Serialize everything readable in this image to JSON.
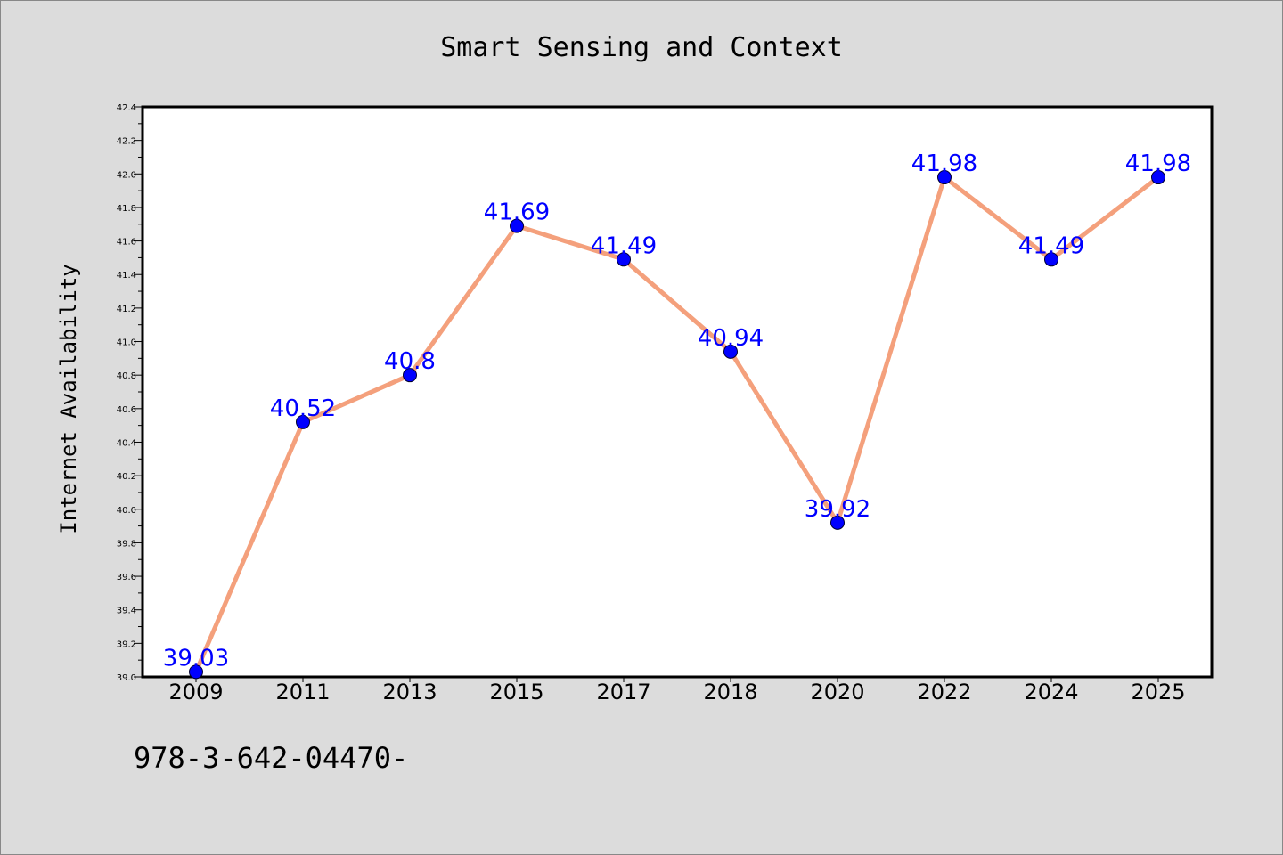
{
  "chart_data": {
    "type": "line",
    "title": "Smart Sensing and Context",
    "xlabel": "",
    "ylabel": "Internet Availability",
    "categories": [
      "2009",
      "2011",
      "2013",
      "2015",
      "2017",
      "2018",
      "2020",
      "2022",
      "2024",
      "2025"
    ],
    "series": [
      {
        "values": [
          39.03,
          40.52,
          40.8,
          41.69,
          41.49,
          40.94,
          39.92,
          41.98,
          41.49,
          41.98
        ],
        "data_labels": [
          "39.03",
          "40.52",
          "40.8",
          "41.69",
          "41.49",
          "40.94",
          "39.92",
          "41.98",
          "41.49",
          "41.98"
        ],
        "line_color": "#f4a07c",
        "marker_color": "#0000ff"
      }
    ],
    "ylim": [
      39.0,
      42.4
    ],
    "y_major_ticks": [
      39.0,
      39.2,
      39.4,
      39.6,
      39.8,
      40.0,
      40.2,
      40.4,
      40.6,
      40.8,
      41.0,
      41.2,
      41.4,
      41.6,
      41.8,
      42.0,
      42.2,
      42.4
    ],
    "y_tick_labels": [
      "39.0",
      "39.2",
      "39.4",
      "39.6",
      "39.8",
      "40.0",
      "40.2",
      "40.4",
      "40.6",
      "40.8",
      "41.0",
      "41.2",
      "41.4",
      "41.6",
      "41.8",
      "42.0",
      "42.2",
      "42.4"
    ],
    "grid": false,
    "legend": "none"
  },
  "footnote": "978-3-642-04470-"
}
